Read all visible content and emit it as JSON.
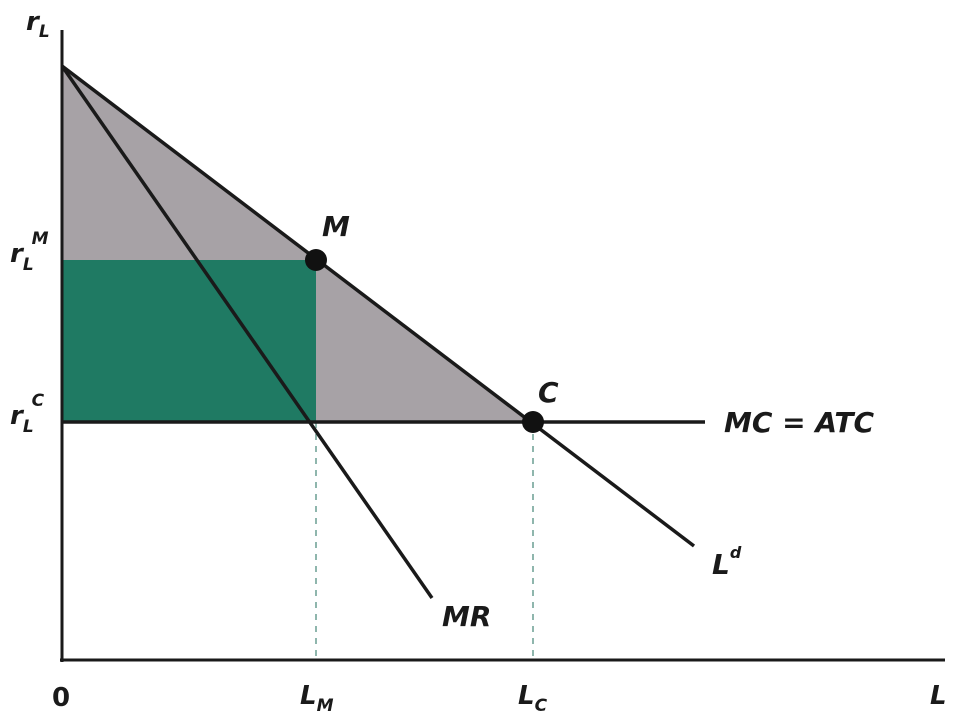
{
  "axes": {
    "y_label": "r",
    "y_label_sub": "L",
    "x_label": "L",
    "origin": "0"
  },
  "y_ticks": {
    "monopoly": {
      "base": "r",
      "sub": "L",
      "sup": "M"
    },
    "competitive": {
      "base": "r",
      "sub": "L",
      "sup": "C"
    }
  },
  "x_ticks": {
    "monopoly": {
      "base": "L",
      "sub": "M"
    },
    "competitive": {
      "base": "L",
      "sub": "C"
    }
  },
  "curves": {
    "demand": {
      "base": "L",
      "sup": "d"
    },
    "marginal_revenue": "MR",
    "marginal_cost": "MC = ATC"
  },
  "points": {
    "monopoly": "M",
    "competitive": "C"
  },
  "colors": {
    "consumer_surplus_gray": "#a7a2a6",
    "profit_green": "#1f7a63",
    "lines": "#1a1a1a",
    "dashed_guides": "#8fb6ad"
  }
}
